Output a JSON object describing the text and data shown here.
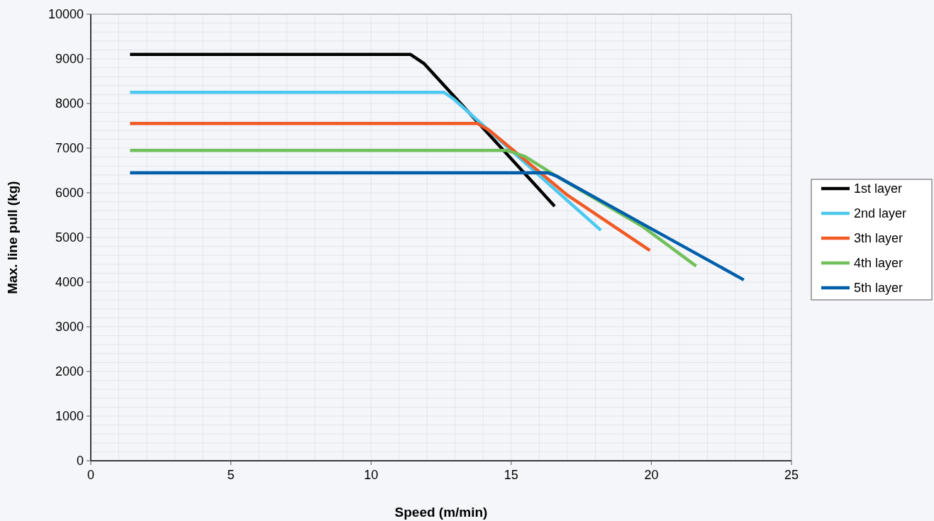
{
  "chart_data": {
    "type": "line",
    "xlabel": "Speed (m/min)",
    "ylabel": "Max. line pull (kg)",
    "xlim": [
      0,
      25
    ],
    "xticks": [
      0,
      5,
      10,
      15,
      20,
      25
    ],
    "ylim": [
      0,
      10000
    ],
    "yticks": [
      0,
      1000,
      2000,
      3000,
      4000,
      5000,
      6000,
      7000,
      8000,
      9000,
      10000
    ],
    "grid": true,
    "legend": "right",
    "line_style": "solid",
    "series": [
      {
        "name": "1st layer",
        "color": "#000000",
        "x": [
          1.4,
          11.4,
          11.9,
          16.55
        ],
        "values": [
          9100,
          9100,
          8890,
          5700
        ]
      },
      {
        "name": "2nd layer",
        "color": "#4dc8ef",
        "x": [
          1.4,
          12.6,
          12.95,
          17.0,
          18.2
        ],
        "values": [
          8250,
          8250,
          8100,
          5830,
          5160
        ]
      },
      {
        "name": "3th layer",
        "color": "#f15a24",
        "x": [
          1.4,
          13.8,
          14.2,
          17.0,
          19.95
        ],
        "values": [
          7550,
          7550,
          7410,
          5950,
          4710
        ]
      },
      {
        "name": "4th layer",
        "color": "#72c05b",
        "x": [
          1.4,
          14.85,
          15.5,
          16.6,
          19.7,
          21.6
        ],
        "values": [
          6950,
          6950,
          6810,
          6380,
          5240,
          4360
        ]
      },
      {
        "name": "5th layer",
        "color": "#005eaa",
        "x": [
          1.4,
          16.3,
          16.6,
          19.7,
          23.3
        ],
        "values": [
          6450,
          6450,
          6380,
          5300,
          4050
        ]
      }
    ]
  }
}
